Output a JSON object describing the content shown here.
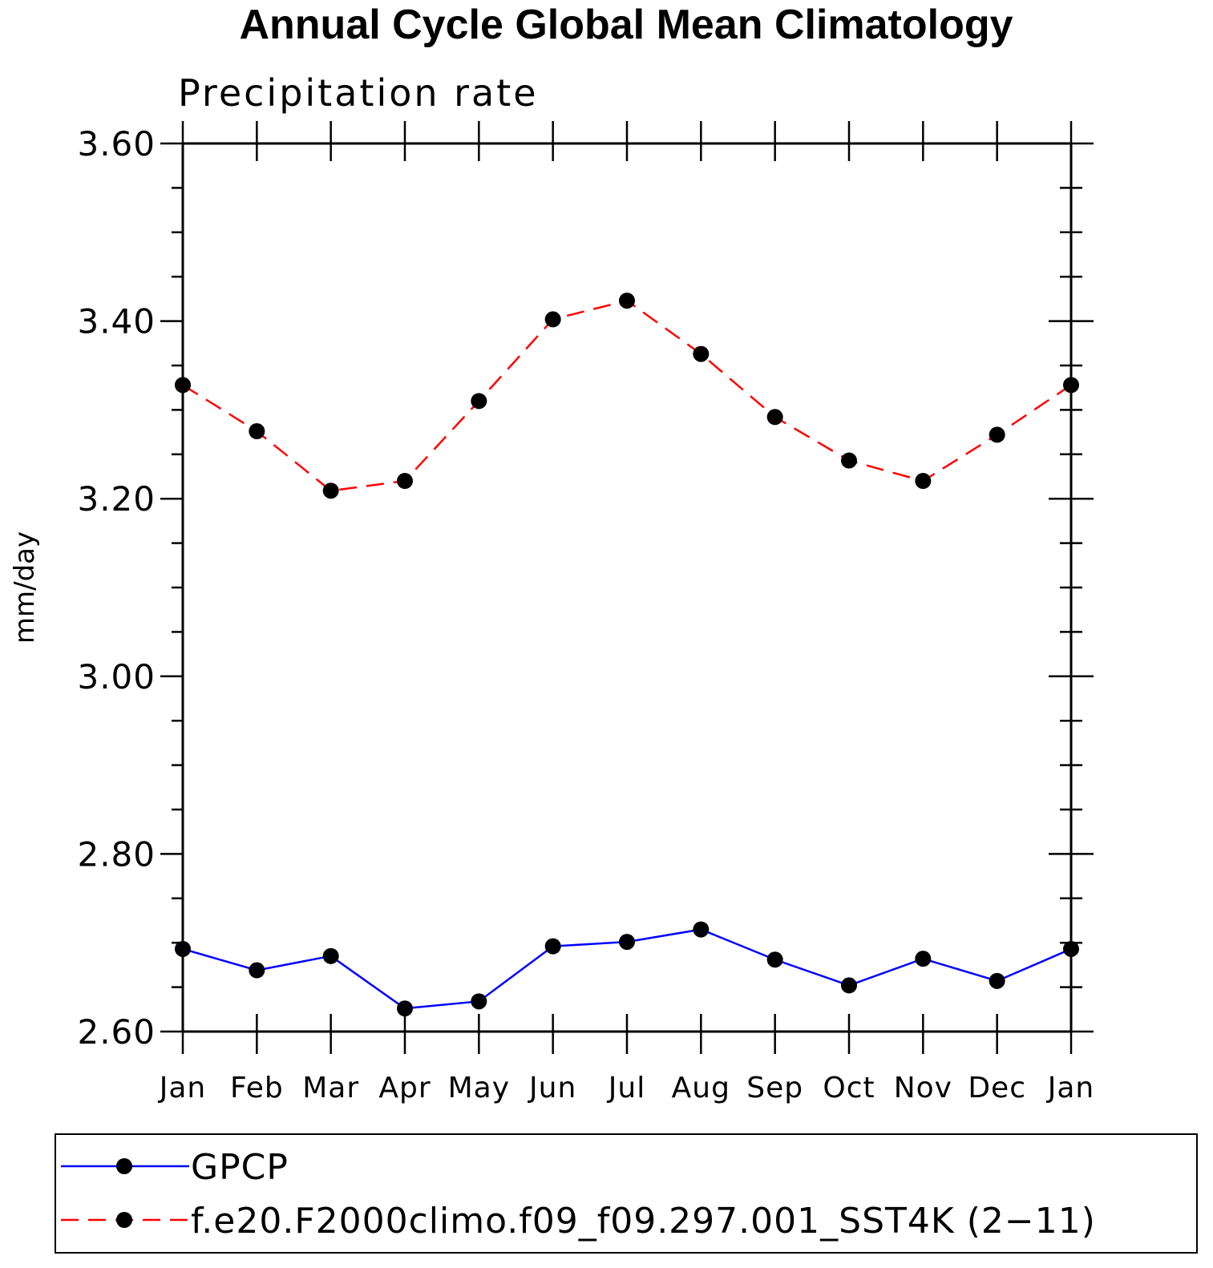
{
  "chart_data": {
    "type": "line",
    "title": "Annual Cycle Global Mean Climatology",
    "subtitle": "Precipitation rate",
    "xlabel": "",
    "ylabel": "mm/day",
    "ylim": [
      2.6,
      3.6
    ],
    "yticks": [
      "2.60",
      "2.80",
      "3.00",
      "3.20",
      "3.40",
      "3.60"
    ],
    "ytick_values": [
      2.6,
      2.8,
      3.0,
      3.2,
      3.4,
      3.6
    ],
    "categories": [
      "Jan",
      "Feb",
      "Mar",
      "Apr",
      "May",
      "Jun",
      "Jul",
      "Aug",
      "Sep",
      "Oct",
      "Nov",
      "Dec",
      "Jan"
    ],
    "series": [
      {
        "name": "GPCP",
        "color": "#0000ff",
        "style": "solid",
        "values": [
          2.693,
          2.669,
          2.685,
          2.626,
          2.634,
          2.696,
          2.701,
          2.715,
          2.681,
          2.652,
          2.682,
          2.657,
          2.693
        ]
      },
      {
        "name": "f.e20.F2000climo.f09_f09.297.001_SST4K (2−11)",
        "color": "#ff0000",
        "style": "dashed",
        "values": [
          3.328,
          3.276,
          3.209,
          3.22,
          3.31,
          3.402,
          3.423,
          3.363,
          3.292,
          3.243,
          3.22,
          3.272,
          3.328
        ]
      }
    ],
    "legend": "bottom",
    "grid": false
  }
}
